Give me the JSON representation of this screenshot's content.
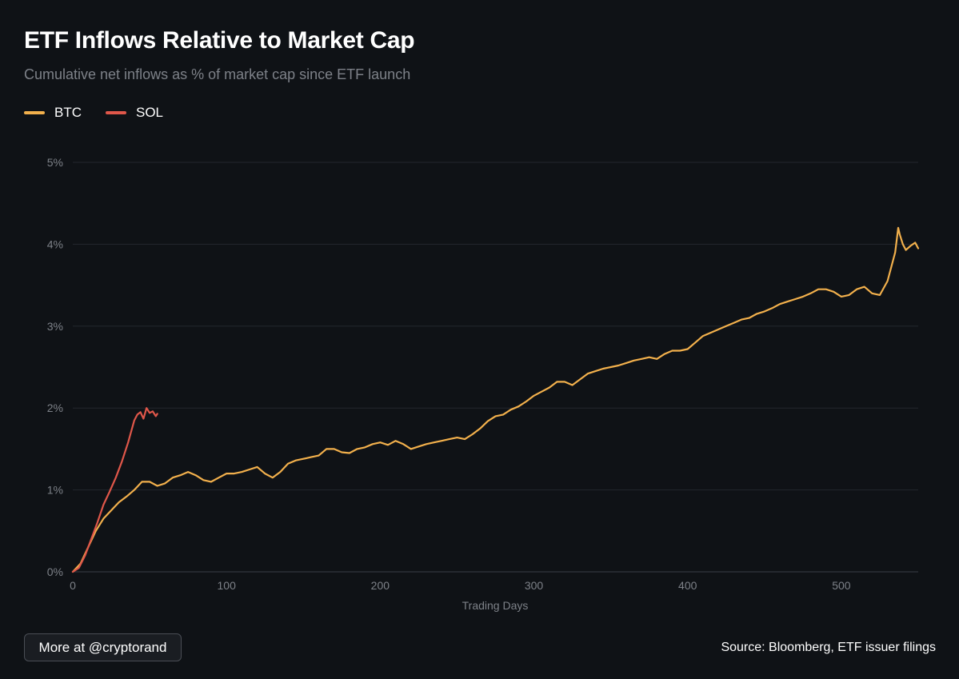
{
  "header": {
    "title": "ETF Inflows Relative to Market Cap",
    "subtitle": "Cumulative net inflows as % of market cap since ETF launch"
  },
  "legend": [
    {
      "label": "BTC",
      "color": "#f2b04c"
    },
    {
      "label": "SOL",
      "color": "#e0574a"
    }
  ],
  "footer": {
    "button_label": "More at @cryptorand",
    "source": "Source: Bloomberg, ETF issuer filings"
  },
  "chart_data": {
    "type": "line",
    "title": "ETF Inflows Relative to Market Cap",
    "xlabel": "Trading Days",
    "ylabel": "",
    "xlim": [
      0,
      550
    ],
    "ylim": [
      0,
      5
    ],
    "x_ticks": [
      0,
      100,
      200,
      300,
      400,
      500
    ],
    "x_tick_labels": [
      "0",
      "100",
      "200",
      "300",
      "400",
      "500"
    ],
    "y_ticks": [
      0,
      1,
      2,
      3,
      4,
      5
    ],
    "y_tick_labels": [
      "0%",
      "1%",
      "2%",
      "3%",
      "4%",
      "5%"
    ],
    "grid": true,
    "series": [
      {
        "name": "BTC",
        "color": "#f2b04c",
        "x": [
          0,
          5,
          10,
          15,
          20,
          25,
          30,
          35,
          40,
          45,
          50,
          55,
          60,
          65,
          70,
          75,
          80,
          85,
          90,
          95,
          100,
          105,
          110,
          115,
          120,
          125,
          130,
          135,
          140,
          145,
          150,
          155,
          160,
          165,
          170,
          175,
          180,
          185,
          190,
          195,
          200,
          205,
          210,
          215,
          220,
          225,
          230,
          235,
          240,
          245,
          250,
          255,
          260,
          265,
          270,
          275,
          280,
          285,
          290,
          295,
          300,
          305,
          310,
          315,
          320,
          325,
          330,
          335,
          340,
          345,
          350,
          355,
          360,
          365,
          370,
          375,
          380,
          385,
          390,
          395,
          400,
          405,
          410,
          415,
          420,
          425,
          430,
          435,
          440,
          445,
          450,
          455,
          460,
          465,
          470,
          475,
          480,
          485,
          490,
          495,
          500,
          505,
          510,
          515,
          520,
          525,
          530,
          535,
          537,
          538,
          540,
          542,
          545,
          548,
          550
        ],
        "values": [
          0.0,
          0.1,
          0.3,
          0.5,
          0.65,
          0.75,
          0.85,
          0.92,
          1.0,
          1.1,
          1.1,
          1.05,
          1.08,
          1.15,
          1.18,
          1.22,
          1.18,
          1.12,
          1.1,
          1.15,
          1.2,
          1.2,
          1.22,
          1.25,
          1.28,
          1.2,
          1.15,
          1.22,
          1.32,
          1.36,
          1.38,
          1.4,
          1.42,
          1.5,
          1.5,
          1.46,
          1.45,
          1.5,
          1.52,
          1.56,
          1.58,
          1.55,
          1.6,
          1.56,
          1.5,
          1.53,
          1.56,
          1.58,
          1.6,
          1.62,
          1.64,
          1.62,
          1.68,
          1.75,
          1.84,
          1.9,
          1.92,
          1.98,
          2.02,
          2.08,
          2.15,
          2.2,
          2.25,
          2.32,
          2.32,
          2.28,
          2.35,
          2.42,
          2.45,
          2.48,
          2.5,
          2.52,
          2.55,
          2.58,
          2.6,
          2.62,
          2.6,
          2.66,
          2.7,
          2.7,
          2.72,
          2.8,
          2.88,
          2.92,
          2.96,
          3.0,
          3.04,
          3.08,
          3.1,
          3.15,
          3.18,
          3.22,
          3.27,
          3.3,
          3.33,
          3.36,
          3.4,
          3.45,
          3.45,
          3.42,
          3.36,
          3.38,
          3.45,
          3.48,
          3.4,
          3.38,
          3.55,
          3.9,
          4.2,
          4.12,
          4.0,
          3.93,
          3.98,
          4.02,
          3.95
        ]
      },
      {
        "name": "SOL",
        "color": "#e0574a",
        "x": [
          0,
          4,
          8,
          12,
          16,
          20,
          24,
          28,
          32,
          36,
          40,
          42,
          44,
          46,
          48,
          50,
          52,
          54,
          55
        ],
        "values": [
          0.0,
          0.05,
          0.2,
          0.4,
          0.6,
          0.82,
          0.98,
          1.15,
          1.35,
          1.58,
          1.85,
          1.92,
          1.95,
          1.87,
          2.0,
          1.94,
          1.96,
          1.9,
          1.93
        ]
      }
    ]
  }
}
